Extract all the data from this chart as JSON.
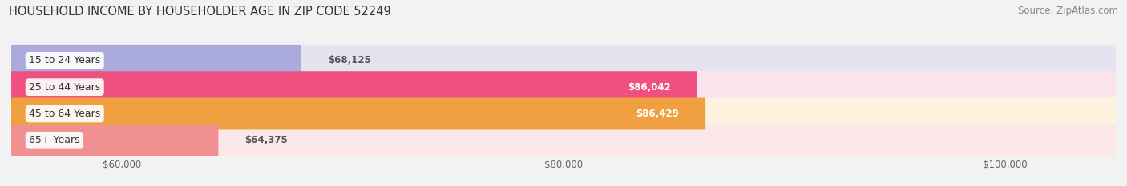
{
  "title": "HOUSEHOLD INCOME BY HOUSEHOLDER AGE IN ZIP CODE 52249",
  "source": "Source: ZipAtlas.com",
  "categories": [
    "15 to 24 Years",
    "25 to 44 Years",
    "45 to 64 Years",
    "65+ Years"
  ],
  "values": [
    68125,
    86042,
    86429,
    64375
  ],
  "bar_colors": [
    "#aaaadd",
    "#f05080",
    "#f0a040",
    "#f09090"
  ],
  "bar_bg_colors": [
    "#e4e4f0",
    "#fce4ee",
    "#fdf2e0",
    "#fce8e8"
  ],
  "xlim": [
    55000,
    105000
  ],
  "xticks": [
    60000,
    80000,
    100000
  ],
  "xticklabels": [
    "$60,000",
    "$80,000",
    "$100,000"
  ],
  "background_color": "#f2f2f2",
  "title_fontsize": 10.5,
  "source_fontsize": 8.5
}
